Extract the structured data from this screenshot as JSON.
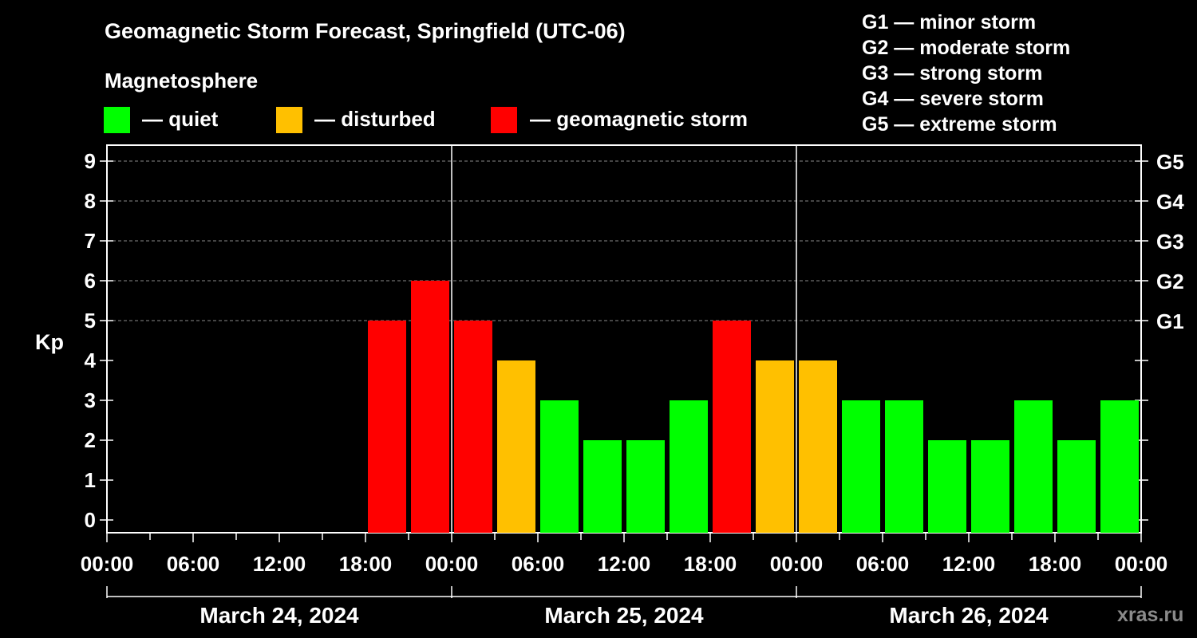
{
  "title": "Geomagnetic Storm Forecast, Springfield (UTC-06)",
  "legend": {
    "heading": "Magnetosphere",
    "items": [
      {
        "label": "— quiet",
        "color": "#00ff00"
      },
      {
        "label": "— disturbed",
        "color": "#ffc000"
      },
      {
        "label": "— geomagnetic storm",
        "color": "#ff0000"
      }
    ]
  },
  "storm_scale": [
    "G1 — minor storm",
    "G2 — moderate storm",
    "G3 — strong storm",
    "G4 — severe storm",
    "G5 — extreme storm"
  ],
  "credit": "xras.ru",
  "chart_data": {
    "type": "bar",
    "ylabel": "Kp",
    "ylim": [
      0,
      9
    ],
    "y_ticks": [
      0,
      1,
      2,
      3,
      4,
      5,
      6,
      7,
      8,
      9
    ],
    "right_axis_labels": [
      {
        "kp": 5,
        "label": "G1"
      },
      {
        "kp": 6,
        "label": "G2"
      },
      {
        "kp": 7,
        "label": "G3"
      },
      {
        "kp": 8,
        "label": "G4"
      },
      {
        "kp": 9,
        "label": "G5"
      }
    ],
    "x_tick_labels": [
      "00:00",
      "06:00",
      "12:00",
      "18:00",
      "00:00",
      "06:00",
      "12:00",
      "18:00",
      "00:00",
      "06:00",
      "12:00",
      "18:00",
      "00:00"
    ],
    "dates": [
      "March 24, 2024",
      "March 25, 2024",
      "March 26, 2024"
    ],
    "interval_hours": 3,
    "grid": "horizontal dashed",
    "bars": [
      {
        "start": "March 24, 2024 18:00",
        "kp": 5,
        "color": "#ff0000"
      },
      {
        "start": "March 24, 2024 21:00",
        "kp": 6,
        "color": "#ff0000"
      },
      {
        "start": "March 25, 2024 00:00",
        "kp": 5,
        "color": "#ff0000"
      },
      {
        "start": "March 25, 2024 03:00",
        "kp": 4,
        "color": "#ffc000"
      },
      {
        "start": "March 25, 2024 06:00",
        "kp": 3,
        "color": "#00ff00"
      },
      {
        "start": "March 25, 2024 09:00",
        "kp": 2,
        "color": "#00ff00"
      },
      {
        "start": "March 25, 2024 12:00",
        "kp": 2,
        "color": "#00ff00"
      },
      {
        "start": "March 25, 2024 15:00",
        "kp": 3,
        "color": "#00ff00"
      },
      {
        "start": "March 25, 2024 18:00",
        "kp": 5,
        "color": "#ff0000"
      },
      {
        "start": "March 25, 2024 21:00",
        "kp": 4,
        "color": "#ffc000"
      },
      {
        "start": "March 26, 2024 00:00",
        "kp": 4,
        "color": "#ffc000"
      },
      {
        "start": "March 26, 2024 03:00",
        "kp": 3,
        "color": "#00ff00"
      },
      {
        "start": "March 26, 2024 06:00",
        "kp": 3,
        "color": "#00ff00"
      },
      {
        "start": "March 26, 2024 09:00",
        "kp": 2,
        "color": "#00ff00"
      },
      {
        "start": "March 26, 2024 12:00",
        "kp": 2,
        "color": "#00ff00"
      },
      {
        "start": "March 26, 2024 15:00",
        "kp": 3,
        "color": "#00ff00"
      },
      {
        "start": "March 26, 2024 18:00",
        "kp": 2,
        "color": "#00ff00"
      },
      {
        "start": "March 26, 2024 21:00",
        "kp": 3,
        "color": "#00ff00"
      }
    ]
  }
}
